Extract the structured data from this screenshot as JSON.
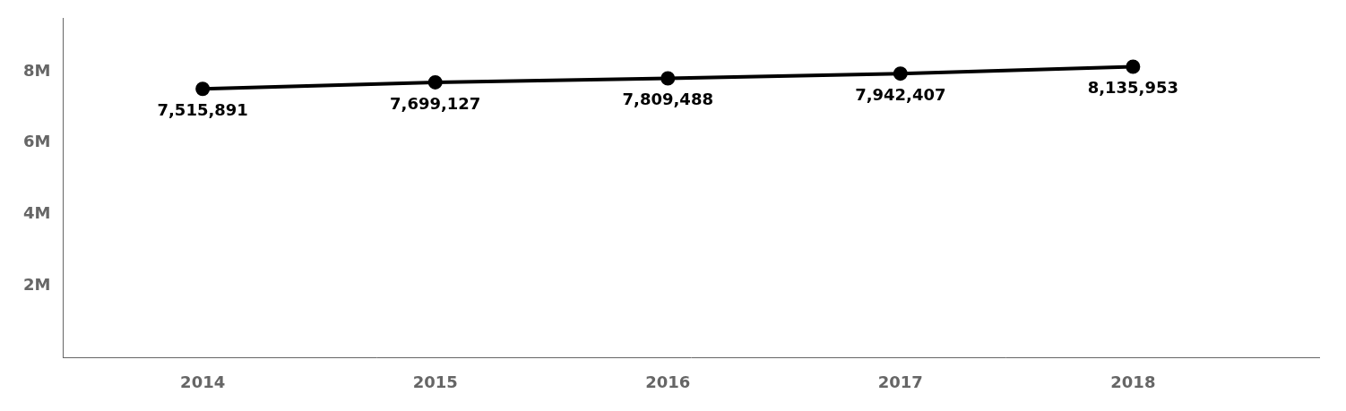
{
  "chart_data": {
    "type": "line",
    "x": [
      2014,
      2015,
      2016,
      2017,
      2018
    ],
    "values": [
      7515891,
      7699127,
      7809488,
      7942407,
      8135953
    ],
    "value_labels": [
      "7,515,891",
      "7,699,127",
      "7,809,488",
      "7,942,407",
      "8,135,953"
    ],
    "data_labels": true,
    "color": "#000000",
    "marker": "circle",
    "ylim": [
      0,
      9500000
    ],
    "yticks": [
      {
        "value": 2000000,
        "label": "2M"
      },
      {
        "value": 4000000,
        "label": "4M"
      },
      {
        "value": 6000000,
        "label": "6M"
      },
      {
        "value": 8000000,
        "label": "8M"
      }
    ],
    "xlim": [
      2013.4,
      2018.8
    ],
    "xticks": [
      2014,
      2015,
      2016,
      2017,
      2018
    ],
    "grid": false
  }
}
